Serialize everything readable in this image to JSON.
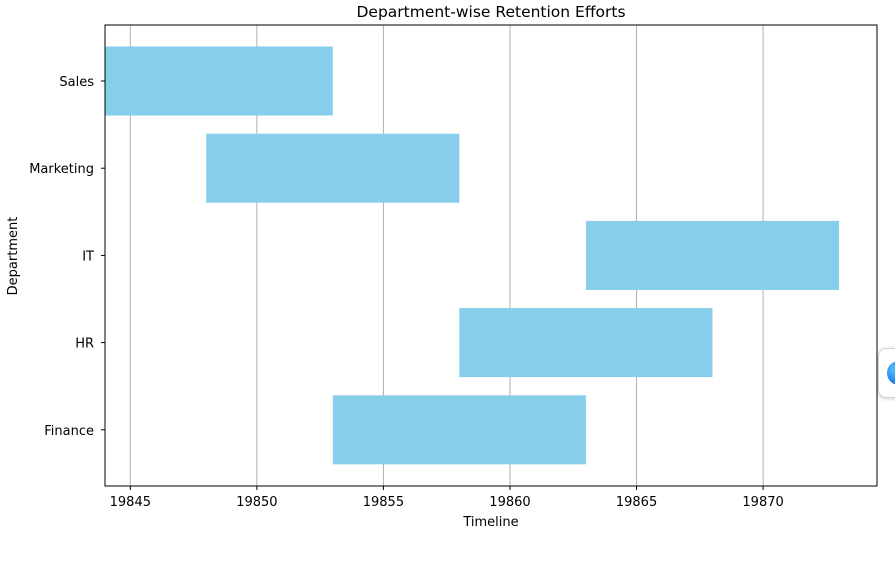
{
  "chart_data": {
    "type": "bar",
    "orientation": "horizontal",
    "title": "Department-wise Retention Efforts",
    "xlabel": "Timeline",
    "ylabel": "Department",
    "categories": [
      "Sales",
      "Marketing",
      "IT",
      "HR",
      "Finance"
    ],
    "bars": [
      {
        "category": "Sales",
        "start": 19844,
        "end": 19853
      },
      {
        "category": "Marketing",
        "start": 19848,
        "end": 19858
      },
      {
        "category": "IT",
        "start": 19863,
        "end": 19873
      },
      {
        "category": "HR",
        "start": 19858,
        "end": 19868
      },
      {
        "category": "Finance",
        "start": 19853,
        "end": 19863
      }
    ],
    "xticks": [
      19845,
      19850,
      19855,
      19860,
      19865,
      19870
    ],
    "xlim": [
      19844,
      19874.5
    ],
    "grid": "vertical",
    "bar_color": "#87ceeb"
  },
  "widget": {
    "icon": "edge-sidebar-icon"
  }
}
